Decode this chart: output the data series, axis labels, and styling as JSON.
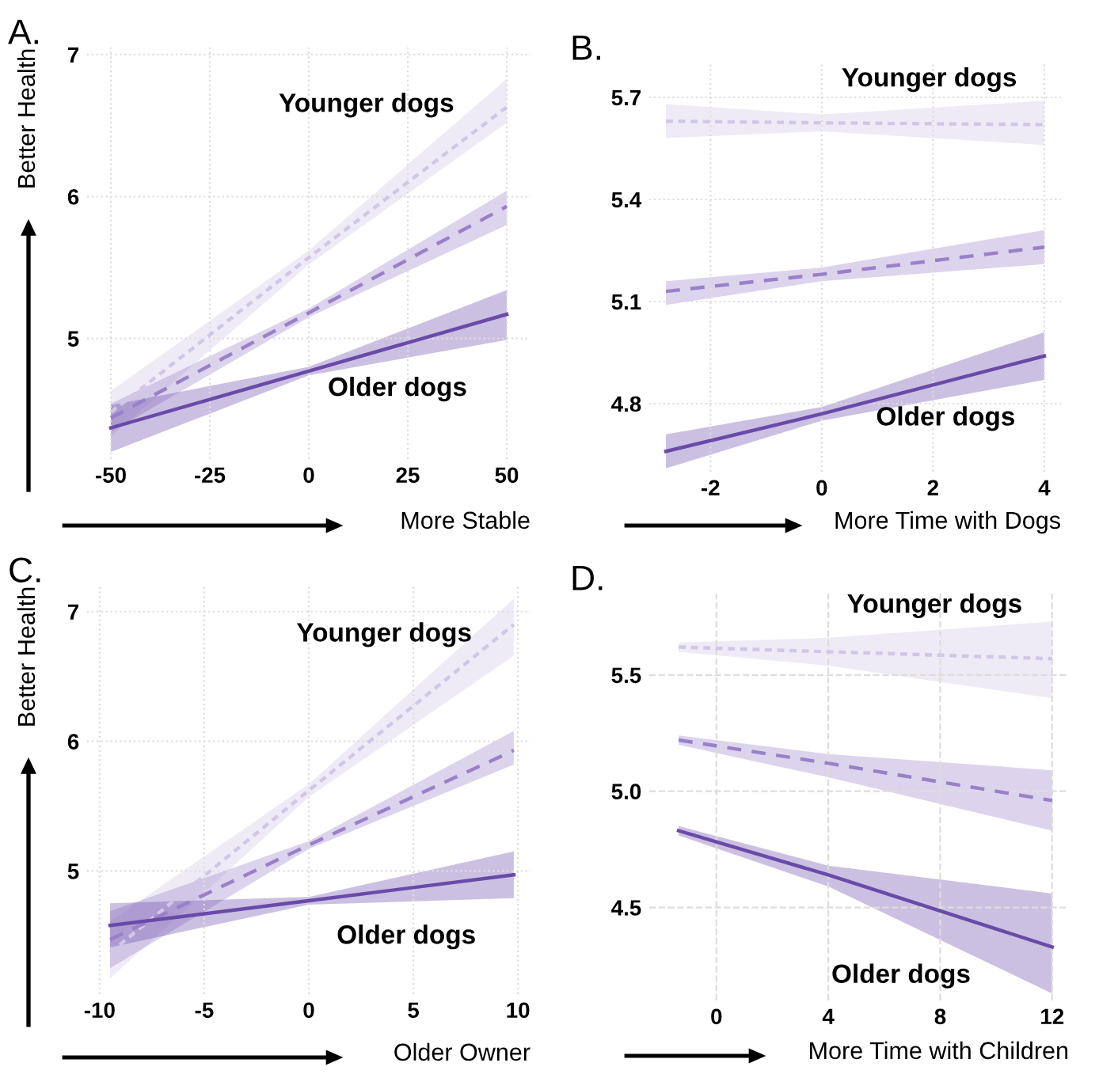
{
  "chart_data": [
    {
      "type": "line",
      "title": "A.",
      "xlabel": "More Stable",
      "ylabel": "Better Health",
      "xlim": [
        -56,
        56
      ],
      "ylim": [
        4.15,
        7.05
      ],
      "xticks": [
        -50,
        -25,
        0,
        25,
        50
      ],
      "yticks": [
        5,
        6,
        7
      ],
      "grid": true,
      "tick_labels": "xy",
      "annotations": [
        "Younger dogs",
        "Older dogs"
      ],
      "series": [
        {
          "color": "#d2c6e6",
          "line_style": "dotted",
          "x": [
            -50,
            0,
            50
          ],
          "values": [
            4.48,
            5.57,
            6.63
          ],
          "lower": [
            4.31,
            5.52,
            6.52
          ],
          "upper": [
            4.63,
            5.62,
            6.83
          ]
        },
        {
          "color": "#9a80c8",
          "line_style": "dashed",
          "x": [
            -50,
            0,
            50
          ],
          "values": [
            4.44,
            5.18,
            5.93
          ],
          "lower": [
            4.34,
            5.15,
            5.8
          ],
          "upper": [
            4.54,
            5.21,
            6.04
          ]
        },
        {
          "color": "#6a4aa8",
          "line_style": "solid",
          "x": [
            -50,
            0,
            50
          ],
          "values": [
            4.37,
            4.77,
            5.17
          ],
          "lower": [
            4.2,
            4.74,
            4.99
          ],
          "upper": [
            4.53,
            4.8,
            5.34
          ]
        }
      ]
    },
    {
      "type": "line",
      "title": "B.",
      "xlabel": "More Time with Dogs",
      "xlim": [
        -3.1,
        4.3
      ],
      "ylim": [
        4.6,
        5.8
      ],
      "xticks": [
        -2,
        0,
        2,
        4
      ],
      "yticks": [
        4.8,
        5.1,
        5.4,
        5.7
      ],
      "grid": true,
      "annotations": [
        "Younger dogs",
        "Older dogs"
      ],
      "series": [
        {
          "color": "#d2c6e6",
          "line_style": "dotted",
          "x": [
            -2.8,
            0,
            4
          ],
          "values": [
            5.63,
            5.625,
            5.62
          ],
          "lower": [
            5.58,
            5.6,
            5.56
          ],
          "upper": [
            5.68,
            5.65,
            5.69
          ]
        },
        {
          "color": "#9a80c8",
          "line_style": "dashed",
          "x": [
            -2.8,
            0,
            4
          ],
          "values": [
            5.13,
            5.18,
            5.26
          ],
          "lower": [
            5.09,
            5.16,
            5.21
          ],
          "upper": [
            5.16,
            5.2,
            5.31
          ]
        },
        {
          "color": "#6a4aa8",
          "line_style": "solid",
          "x": [
            -2.8,
            0,
            4
          ],
          "values": [
            4.66,
            4.77,
            4.94
          ],
          "lower": [
            4.61,
            4.75,
            4.87
          ],
          "upper": [
            4.71,
            4.79,
            5.01
          ]
        }
      ]
    },
    {
      "type": "line",
      "title": "C.",
      "xlabel": "Older Owner",
      "ylabel": "Better Health",
      "xlim": [
        -10.6,
        10.6
      ],
      "ylim": [
        4.05,
        7.2
      ],
      "xticks": [
        -10,
        -5,
        0,
        5,
        10
      ],
      "yticks": [
        5,
        6,
        7
      ],
      "grid": true,
      "annotations": [
        "Younger dogs",
        "Older dogs"
      ],
      "series": [
        {
          "color": "#d2c6e6",
          "line_style": "dotted",
          "x": [
            -9.5,
            0,
            9.8
          ],
          "values": [
            4.37,
            5.62,
            6.9
          ],
          "lower": [
            4.17,
            5.57,
            6.66
          ],
          "upper": [
            4.61,
            5.67,
            7.1
          ]
        },
        {
          "color": "#9a80c8",
          "line_style": "dashed",
          "x": [
            -9.5,
            0,
            9.8
          ],
          "values": [
            4.47,
            5.2,
            5.93
          ],
          "lower": [
            4.25,
            5.17,
            5.82
          ],
          "upper": [
            4.69,
            5.23,
            6.08
          ]
        },
        {
          "color": "#6a4aa8",
          "line_style": "solid",
          "x": [
            -9.5,
            0,
            9.8
          ],
          "values": [
            4.58,
            4.77,
            4.97
          ],
          "lower": [
            4.41,
            4.74,
            4.79
          ],
          "upper": [
            4.75,
            4.8,
            5.15
          ]
        }
      ]
    },
    {
      "type": "line",
      "title": "D.",
      "xlabel": "More Time with Children",
      "xlim": [
        -2.4,
        12.6
      ],
      "ylim": [
        4.1,
        5.85
      ],
      "xticks": [
        0,
        4,
        8,
        12
      ],
      "yticks": [
        4.5,
        {
          "value": 5,
          "label": "5.0"
        },
        5.5
      ],
      "grid": true,
      "annotations": [
        "Younger dogs",
        "Older dogs"
      ],
      "series": [
        {
          "color": "#d2c6e6",
          "line_style": "dotted",
          "x": [
            -1.35,
            4,
            12
          ],
          "values": [
            5.62,
            5.6,
            5.57
          ],
          "lower": [
            5.6,
            5.54,
            5.4
          ],
          "upper": [
            5.64,
            5.66,
            5.73
          ]
        },
        {
          "color": "#9a80c8",
          "line_style": "dashed",
          "x": [
            -1.35,
            4,
            12
          ],
          "values": [
            5.22,
            5.12,
            4.96
          ],
          "lower": [
            5.2,
            5.06,
            4.83
          ],
          "upper": [
            5.24,
            5.16,
            5.09
          ]
        },
        {
          "color": "#6a4aa8",
          "line_style": "solid",
          "x": [
            -1.35,
            4,
            12
          ],
          "values": [
            4.83,
            4.64,
            4.33
          ],
          "lower": [
            4.81,
            4.59,
            4.13
          ],
          "upper": [
            4.85,
            4.68,
            4.56
          ]
        }
      ]
    }
  ]
}
